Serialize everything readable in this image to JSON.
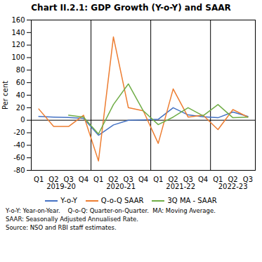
{
  "chart_data": {
    "type": "line",
    "title": "Chart II.2.1: GDP Growth (Y-o-Y) and SAAR",
    "ylabel": "Per cent",
    "categories": [
      "Q1",
      "Q2",
      "Q3",
      "Q4",
      "Q1",
      "Q2",
      "Q3",
      "Q4",
      "Q1",
      "Q2",
      "Q3",
      "Q4",
      "Q1",
      "Q2",
      "Q3"
    ],
    "year_groups": [
      {
        "label": "2019-20",
        "count": 4
      },
      {
        "label": "2020-21",
        "count": 4
      },
      {
        "label": "2021-22",
        "count": 4
      },
      {
        "label": "2022-23",
        "count": 3
      }
    ],
    "series": [
      {
        "name": "Y-o-Y",
        "color": "#4472C4",
        "values": [
          6,
          5,
          4.5,
          3,
          -24,
          -7.5,
          0,
          0.5,
          1.5,
          20,
          8.5,
          5.5,
          4,
          13,
          6
        ]
      },
      {
        "name": "Q-o-Q SAAR",
        "color": "#ED7D31",
        "values": [
          18,
          -10,
          -10,
          8,
          -65,
          133,
          20,
          15,
          -37,
          50,
          5,
          8,
          -15,
          17,
          5
        ]
      },
      {
        "name": "3Q MA - SAAR",
        "color": "#70AD47",
        "values": [
          null,
          null,
          8,
          5,
          -22,
          25,
          58,
          15,
          -7,
          5,
          20,
          7,
          25,
          4,
          5
        ]
      }
    ],
    "hlines": [
      0
    ],
    "ylim": [
      -80,
      160
    ],
    "yticks": [
      -80,
      -60,
      -40,
      -20,
      0,
      20,
      40,
      60,
      80,
      100,
      120,
      140,
      160
    ],
    "grid": false,
    "legend": "bottom",
    "notes": [
      "Y-o-Y: Year-on-Year.    Q-o-Q: Quarter-on-Quarter.  MA: Moving Average.",
      "SAAR: Seasonally Adjusted Annualised Rate.",
      "Source: NSO and RBI staff estimates."
    ]
  }
}
